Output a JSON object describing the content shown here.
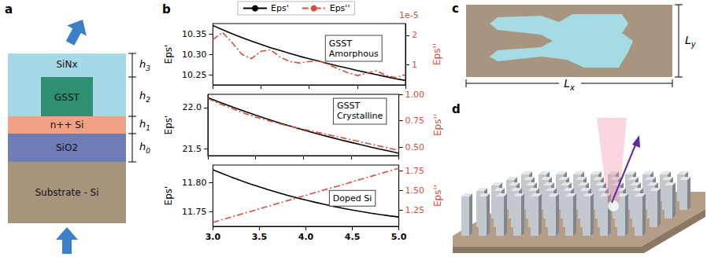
{
  "panel_letters": [
    "a",
    "b",
    "c",
    "d"
  ],
  "panel_a": {
    "layers": [
      {
        "label": "SiNx"
      },
      {
        "label": "GSST"
      },
      {
        "label": "n++ Si"
      },
      {
        "label": "SiO2"
      },
      {
        "label": "Substrate - Si"
      }
    ],
    "thickness_labels": [
      {
        "symbol": "h",
        "sub": "3"
      },
      {
        "symbol": "h",
        "sub": "2"
      },
      {
        "symbol": "h",
        "sub": "1"
      },
      {
        "symbol": "h",
        "sub": "0"
      }
    ]
  },
  "chart_data": [
    {
      "type": "line",
      "label_lines": [
        "GSST",
        "Amorphous"
      ],
      "legend": "top",
      "annotation": "1e-5",
      "grid": false,
      "tick_labels": "y",
      "x": [
        3.0,
        3.1,
        3.2,
        3.3,
        3.4,
        3.5,
        3.6,
        3.7,
        3.8,
        3.9,
        4.0,
        4.1,
        4.2,
        4.3,
        4.4,
        4.5,
        4.6,
        4.7,
        4.8,
        4.9,
        5.0
      ],
      "xlim": [
        3.0,
        5.0
      ],
      "xticks": [
        {
          "value": 3.0,
          "label": "3.0"
        },
        {
          "value": 3.5,
          "label": "3.5"
        },
        {
          "value": 4.0,
          "label": "4.0"
        },
        {
          "value": 4.5,
          "label": "4.5"
        },
        {
          "value": 5.0,
          "label": "5.0"
        }
      ],
      "ylabel": "Eps'",
      "ylim": [
        10.225,
        10.375
      ],
      "yticks": [
        {
          "value": 10.25,
          "label": "10.25"
        },
        {
          "value": 10.3,
          "label": "10.30"
        },
        {
          "value": 10.35,
          "label": "10.35"
        }
      ],
      "y2label": "Eps''",
      "y2lim": [
        0.3,
        2.4
      ],
      "y2ticks": [
        1,
        2
      ],
      "series": [
        {
          "name": "Eps'",
          "color": "#000000",
          "line_style": "solid",
          "values": [
            10.37,
            10.36,
            10.35,
            10.341,
            10.332,
            10.324,
            10.316,
            10.309,
            10.302,
            10.295,
            10.289,
            10.283,
            10.277,
            10.271,
            10.266,
            10.26,
            10.255,
            10.25,
            10.245,
            10.24,
            10.236
          ]
        },
        {
          "name": "Eps''",
          "color": "#d4503a",
          "line_style": "dashdot",
          "axis": "y2",
          "values": [
            1.85,
            2.1,
            1.75,
            1.35,
            1.2,
            1.45,
            1.5,
            1.25,
            1.1,
            1.05,
            1.1,
            1.12,
            1.0,
            0.85,
            0.72,
            0.62,
            0.7,
            0.78,
            0.62,
            0.55,
            0.65
          ]
        }
      ]
    },
    {
      "type": "line",
      "label_lines": [
        "GSST",
        "Crystalline"
      ],
      "grid": false,
      "tick_labels": "y",
      "x": [
        3.0,
        3.1,
        3.2,
        3.3,
        3.4,
        3.5,
        3.6,
        3.7,
        3.8,
        3.9,
        4.0,
        4.1,
        4.2,
        4.3,
        4.4,
        4.5,
        4.6,
        4.7,
        4.8,
        4.9,
        5.0
      ],
      "xlim": [
        3.0,
        5.0
      ],
      "xticks": [
        {
          "value": 3.0,
          "label": "3.0"
        },
        {
          "value": 3.5,
          "label": "3.5"
        },
        {
          "value": 4.0,
          "label": "4.0"
        },
        {
          "value": 4.5,
          "label": "4.5"
        },
        {
          "value": 5.0,
          "label": "5.0"
        }
      ],
      "ylabel": "Eps'",
      "ylim": [
        21.42,
        22.16
      ],
      "yticks": [
        21.5,
        {
          "value": 22.0,
          "label": "22.0"
        }
      ],
      "y2label": "Eps''",
      "y2lim": [
        0.42,
        1.0
      ],
      "y2ticks": [
        {
          "value": 0.5,
          "label": "0.50"
        },
        0.75,
        {
          "value": 1.0,
          "label": "1.00"
        }
      ],
      "series": [
        {
          "name": "Eps'",
          "color": "#000000",
          "line_style": "solid",
          "values": [
            22.12,
            22.075,
            22.031,
            21.989,
            21.948,
            21.908,
            21.87,
            21.833,
            21.797,
            21.763,
            21.73,
            21.698,
            21.667,
            21.637,
            21.608,
            21.58,
            21.552,
            21.525,
            21.499,
            21.474,
            21.449
          ]
        },
        {
          "name": "Eps''",
          "color": "#d4503a",
          "line_style": "dashdot",
          "axis": "y2",
          "values": [
            0.96,
            0.92,
            0.885,
            0.85,
            0.815,
            0.785,
            0.76,
            0.735,
            0.71,
            0.69,
            0.67,
            0.65,
            0.63,
            0.61,
            0.59,
            0.57,
            0.55,
            0.53,
            0.51,
            0.49,
            0.47
          ]
        }
      ]
    },
    {
      "type": "line",
      "label_lines": [
        "Doped Si"
      ],
      "grid": false,
      "x": [
        3.0,
        3.1,
        3.2,
        3.3,
        3.4,
        3.5,
        3.6,
        3.7,
        3.8,
        3.9,
        4.0,
        4.1,
        4.2,
        4.3,
        4.4,
        4.5,
        4.6,
        4.7,
        4.8,
        4.9,
        5.0
      ],
      "xlim": [
        3.0,
        5.0
      ],
      "xticks": [
        {
          "value": 3.0,
          "label": "3.0"
        },
        {
          "value": 3.5,
          "label": "3.5"
        },
        {
          "value": 4.0,
          "label": "4.0"
        },
        {
          "value": 4.5,
          "label": "4.5"
        },
        {
          "value": 5.0,
          "label": "5.0"
        }
      ],
      "ylabel": "Eps'",
      "ylim": [
        11.725,
        11.83
      ],
      "yticks": [
        11.75,
        {
          "value": 11.8,
          "label": "11.80"
        }
      ],
      "y2label": "Eps''",
      "y2lim": [
        1.05,
        1.82
      ],
      "y2ticks": [
        1.25,
        {
          "value": 1.5,
          "label": "1.50"
        },
        1.75
      ],
      "series": [
        {
          "name": "Eps'",
          "color": "#000000",
          "line_style": "solid",
          "values": [
            11.822,
            11.8155,
            11.8093,
            11.8034,
            11.7978,
            11.7925,
            11.7875,
            11.7828,
            11.7783,
            11.774,
            11.77,
            11.7662,
            11.7626,
            11.7592,
            11.756,
            11.753,
            11.7502,
            11.7476,
            11.7452,
            11.743,
            11.741
          ]
        },
        {
          "name": "Eps''",
          "color": "#d4503a",
          "line_style": "dashdot",
          "axis": "y2",
          "values": [
            1.1,
            1.134,
            1.168,
            1.202,
            1.236,
            1.27,
            1.304,
            1.338,
            1.372,
            1.406,
            1.44,
            1.474,
            1.508,
            1.542,
            1.576,
            1.61,
            1.644,
            1.678,
            1.712,
            1.746,
            1.78
          ]
        }
      ]
    }
  ],
  "panel_c": {
    "width_label": {
      "symbol": "L",
      "sub": "x"
    },
    "height_label": {
      "symbol": "L",
      "sub": "y"
    }
  }
}
